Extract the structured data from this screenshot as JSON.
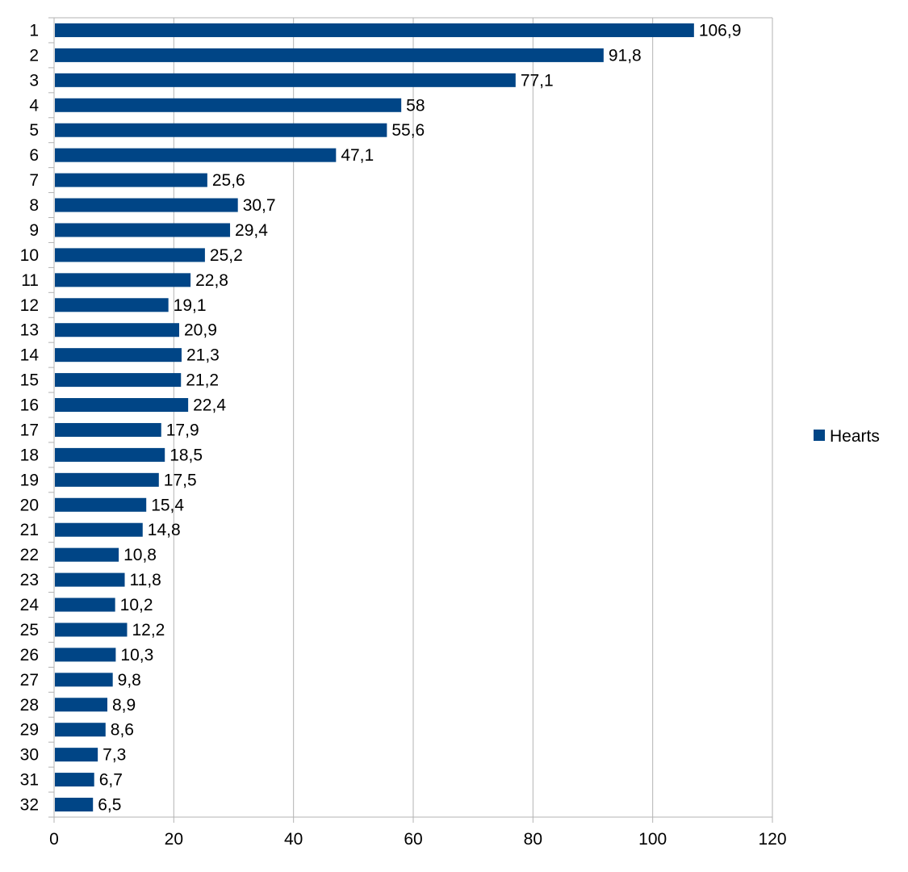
{
  "chart_data": {
    "type": "bar",
    "orientation": "horizontal",
    "categories": [
      "1",
      "2",
      "3",
      "4",
      "5",
      "6",
      "7",
      "8",
      "9",
      "10",
      "11",
      "12",
      "13",
      "14",
      "15",
      "16",
      "17",
      "18",
      "19",
      "20",
      "21",
      "22",
      "23",
      "24",
      "25",
      "26",
      "27",
      "28",
      "29",
      "30",
      "31",
      "32"
    ],
    "series": [
      {
        "name": "Hearts",
        "color": "#004586",
        "values": [
          106.9,
          91.8,
          77.1,
          58,
          55.6,
          47.1,
          25.6,
          30.7,
          29.4,
          25.2,
          22.8,
          19.1,
          20.9,
          21.3,
          21.2,
          22.4,
          17.9,
          18.5,
          17.5,
          15.4,
          14.8,
          10.8,
          11.8,
          10.2,
          12.2,
          10.3,
          9.8,
          8.9,
          8.6,
          7.3,
          6.7,
          6.5
        ],
        "labels": [
          "106,9",
          "91,8",
          "77,1",
          "58",
          "55,6",
          "47,1",
          "25,6",
          "30,7",
          "29,4",
          "25,2",
          "22,8",
          "19,1",
          "20,9",
          "21,3",
          "21,2",
          "22,4",
          "17,9",
          "18,5",
          "17,5",
          "15,4",
          "14,8",
          "10,8",
          "11,8",
          "10,2",
          "12,2",
          "10,3",
          "9,8",
          "8,9",
          "8,6",
          "7,3",
          "6,7",
          "6,5"
        ]
      }
    ],
    "xlim": [
      0,
      120
    ],
    "xticks": [
      0,
      20,
      40,
      60,
      80,
      100,
      120
    ],
    "xtick_labels": [
      "0",
      "20",
      "40",
      "60",
      "80",
      "100",
      "120"
    ],
    "grid": "vertical",
    "legend": "right",
    "title": "",
    "xlabel": "",
    "ylabel": ""
  },
  "colors": {
    "bar": "#004586",
    "grid": "#b3b3b3",
    "axis": "#b3b3b3"
  }
}
